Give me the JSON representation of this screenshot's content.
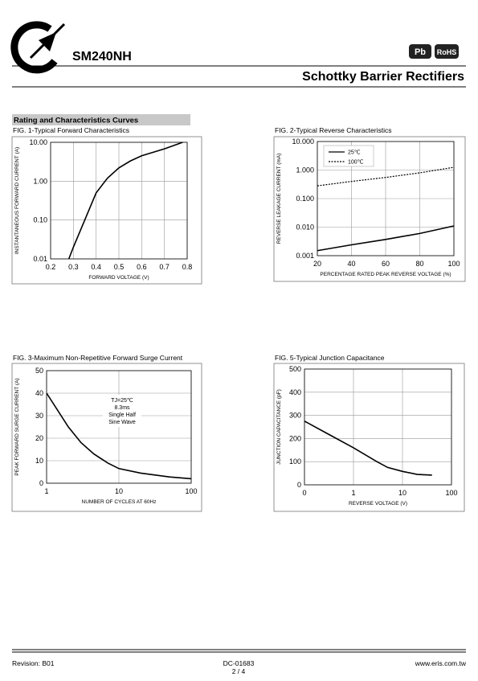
{
  "header": {
    "title": "SM240NH",
    "subtitle": "Schottky Barrier Rectifiers",
    "badges": [
      "Pb",
      "RoHS"
    ],
    "section": "Rating and Characteristics Curves"
  },
  "footer": {
    "revision": "Revision: B01",
    "doc": "DC-01683",
    "page": "2 / 4",
    "website": "www.eris.com.tw"
  },
  "chart_data": [
    {
      "type": "line",
      "title": "FIG. 1-Typical Forward Characteristics",
      "xlabel": "FORWARD VOLTAGE (V)",
      "ylabel": "INSTANTANEOUS FORWARD CURRENT (A)",
      "xlim": [
        0.2,
        0.8
      ],
      "xticks": [
        0.2,
        0.3,
        0.4,
        0.5,
        0.6,
        0.7,
        0.8
      ],
      "ylim": [
        0.01,
        10
      ],
      "yscale": "log",
      "yticks": [
        {
          "value": 10,
          "label": "10.00"
        },
        {
          "value": 1,
          "label": "1.00"
        },
        {
          "value": 0.1,
          "label": "0.10"
        },
        {
          "value": 0.01,
          "label": "0.01"
        }
      ],
      "grid": true,
      "series": [
        {
          "color": "#000000",
          "x": [
            0.28,
            0.3,
            0.35,
            0.4,
            0.45,
            0.5,
            0.55,
            0.6,
            0.7,
            0.78
          ],
          "values": [
            0.01,
            0.02,
            0.1,
            0.5,
            1.2,
            2.2,
            3.3,
            4.5,
            6.8,
            10
          ]
        }
      ]
    },
    {
      "type": "line",
      "title": "FIG. 2-Typical Reverse Characteristics",
      "xlabel": "PERCENTAGE RATED PEAK REVERSE VOLTAGE (%)",
      "ylabel": "REVERSE LEAKAGE CURRENT (mA)",
      "xlim": [
        20,
        100
      ],
      "xticks": [
        20,
        40,
        60,
        80,
        100
      ],
      "ylim": [
        0.001,
        10
      ],
      "yscale": "log",
      "yticks": [
        {
          "value": 10,
          "label": "10.000"
        },
        {
          "value": 1,
          "label": "1.000"
        },
        {
          "value": 0.1,
          "label": "0.100"
        },
        {
          "value": 0.01,
          "label": "0.010"
        },
        {
          "value": 0.001,
          "label": "0.001"
        }
      ],
      "grid": true,
      "legend": "upper-left",
      "series": [
        {
          "name": "25℃",
          "color": "#000000",
          "x": [
            20,
            40,
            60,
            80,
            100
          ],
          "values": [
            0.0015,
            0.0024,
            0.0037,
            0.006,
            0.011
          ]
        },
        {
          "name": "100℃",
          "color": "#000000",
          "dashed": true,
          "x": [
            20,
            40,
            60,
            80,
            100
          ],
          "values": [
            0.28,
            0.4,
            0.55,
            0.8,
            1.25
          ]
        }
      ]
    },
    {
      "type": "line",
      "title": "FIG. 3-Maximum Non-Repetitive Forward Surge Current",
      "xlabel": "NUMBER OF CYCLES AT 60Hz",
      "ylabel": "PEAK FORWARD SURGE CURRENT (A)",
      "xlim": [
        1,
        100
      ],
      "xscale": "log",
      "xticks": [
        1,
        10,
        100
      ],
      "ylim": [
        0,
        50
      ],
      "yticks": [
        0,
        10,
        20,
        30,
        40,
        50
      ],
      "grid": true,
      "annotations": [
        "TJ=25℃",
        "8.3ms",
        "Single Half",
        "Sine Wave"
      ],
      "series": [
        {
          "color": "#000000",
          "x": [
            1,
            2,
            3,
            4.5,
            7,
            10,
            20,
            50,
            100
          ],
          "values": [
            40,
            25,
            18,
            13,
            9,
            6.5,
            4.5,
            2.8,
            2
          ]
        }
      ]
    },
    {
      "type": "line",
      "title": "FIG. 5-Typical Junction Capacitance",
      "xlabel": "REVERSE VOLTAGE (V)",
      "ylabel": "JUNCTION CAPACITANCE (pF)",
      "xlim": [
        0.1,
        100
      ],
      "xscale": "log",
      "xticks": [
        {
          "value": 0.1,
          "label": "0"
        },
        1,
        10,
        100
      ],
      "ylim": [
        0,
        500
      ],
      "yticks": [
        0,
        100,
        200,
        300,
        400,
        500
      ],
      "grid": true,
      "series": [
        {
          "color": "#000000",
          "x": [
            0.1,
            0.3,
            1,
            3,
            5,
            10,
            20,
            40
          ],
          "values": [
            275,
            220,
            160,
            100,
            75,
            58,
            45,
            42
          ]
        }
      ]
    }
  ]
}
